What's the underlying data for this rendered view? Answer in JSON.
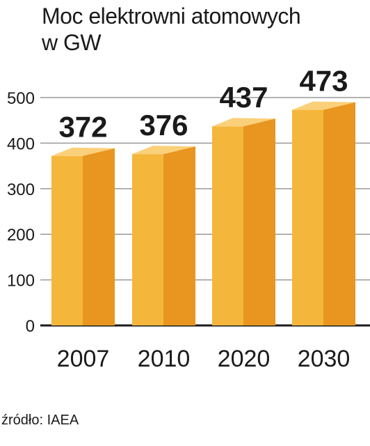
{
  "chart_data": {
    "type": "bar",
    "title_line1": "Moc elektrowni atomowych",
    "title_line2": "w GW",
    "categories": [
      "2007",
      "2010",
      "2020",
      "2030"
    ],
    "values": [
      372,
      376,
      437,
      473
    ],
    "data_labels": [
      "372",
      "376",
      "437",
      "473"
    ],
    "yticks": [
      "0",
      "100",
      "200",
      "300",
      "400",
      "500"
    ],
    "ylim": [
      0,
      500
    ],
    "grid": true,
    "legend": "none"
  },
  "source": "źródło: IAEA",
  "colors": {
    "bar_front": "#f5b63c",
    "bar_side": "#e8961f",
    "bar_top": "#fbd07a",
    "grid": "#9a9a9a",
    "axis": "#1a1a1a"
  }
}
